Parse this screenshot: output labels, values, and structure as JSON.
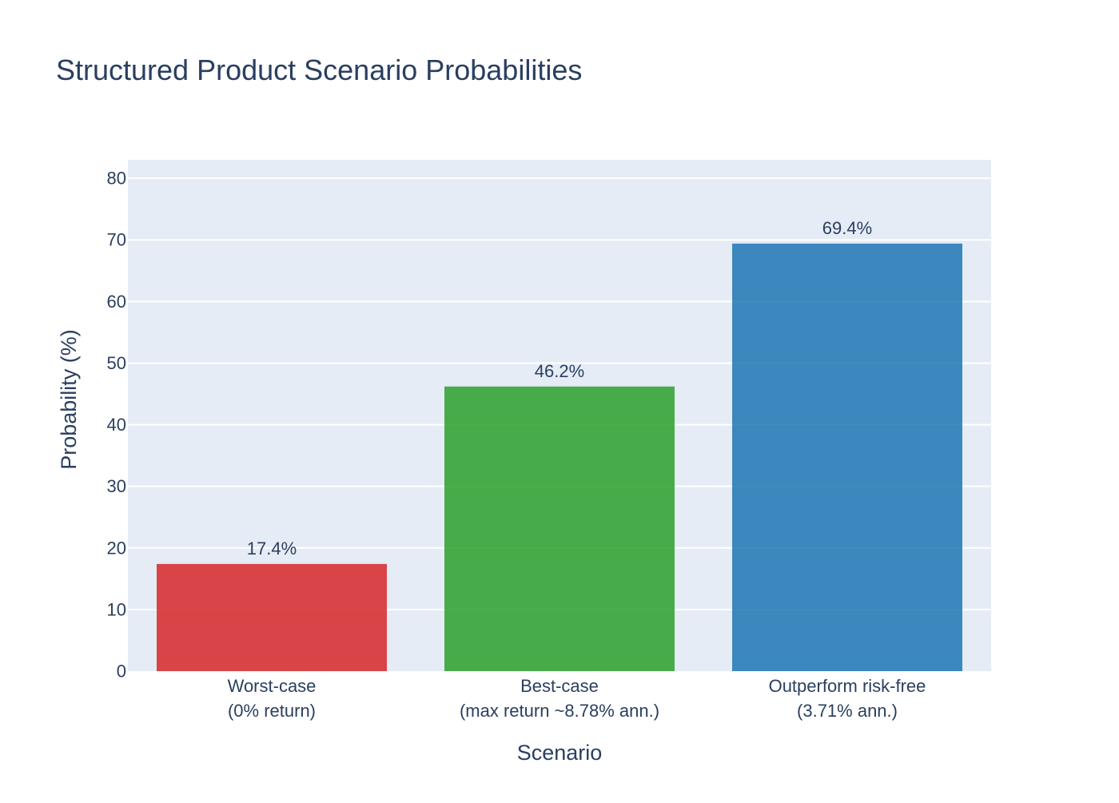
{
  "chart_data": {
    "type": "bar",
    "title": "Structured Product Scenario Probabilities",
    "xlabel": "Scenario",
    "ylabel": "Probability (%)",
    "categories": [
      [
        "Worst-case",
        "(0% return)"
      ],
      [
        "Best-case",
        "(max return ~8.78% ann.)"
      ],
      [
        "Outperform risk-free",
        "(3.71% ann.)"
      ]
    ],
    "values": [
      17.4,
      46.2,
      69.4
    ],
    "data_labels": [
      "17.4%",
      "46.2%",
      "69.4%"
    ],
    "colors": [
      "#d62728",
      "#2ca02c",
      "#1f77b4"
    ],
    "ylim": [
      0,
      83
    ],
    "yticks": [
      0,
      10,
      20,
      30,
      40,
      50,
      60,
      70,
      80
    ],
    "grid": true,
    "legend": "none"
  },
  "style": {
    "plot_bg": "#e5ecf6",
    "grid_color": "#ffffff",
    "text_color": "#2a3f5f",
    "bar_opacity": 0.85
  }
}
